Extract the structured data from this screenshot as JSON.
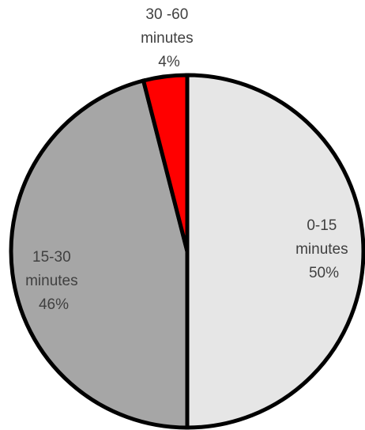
{
  "chart_data": {
    "type": "pie",
    "start_angle_deg": 0,
    "direction": "clockwise",
    "slices": [
      {
        "category": "0-15 minutes",
        "label_lines": [
          "0-15",
          "minutes",
          "50%"
        ],
        "value": 50,
        "color": "#e6e6e6"
      },
      {
        "category": "15-30 minutes",
        "label_lines": [
          "15-30",
          "minutes",
          "46%"
        ],
        "value": 46,
        "color": "#a6a6a6"
      },
      {
        "category": "30 -60 minutes",
        "label_lines": [
          "30 -60",
          "minutes",
          "4%"
        ],
        "value": 4,
        "color": "#ff0000"
      }
    ],
    "title": "",
    "legend": "none",
    "border_color": "#000000"
  }
}
